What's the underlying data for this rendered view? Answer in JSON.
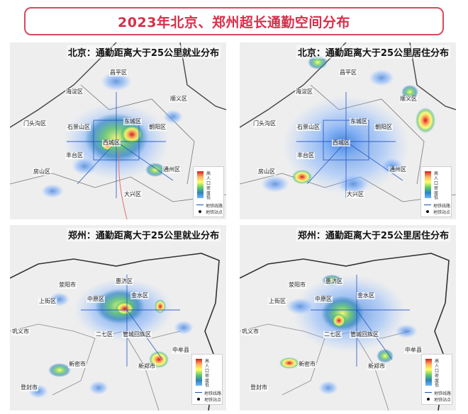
{
  "title": "2023年北京、郑州超长通勤空间分布",
  "colors": {
    "title_border": "#d94a5e",
    "title_text": "#d92e4a",
    "heat_low": "#2b83ba",
    "heat_high": "#d7191c",
    "subway_line": "#1c4fbf"
  },
  "legend": {
    "high": "高",
    "caption": "人口密度",
    "low": "低",
    "subway_line": "地铁线路",
    "subway_station": "地铁站点"
  },
  "panels": {
    "bj_work": {
      "title": "北京：通勤距离大于25公里就业分布",
      "places": {
        "changping": "昌平区",
        "haidian": "海淀区",
        "shunyi": "顺义区",
        "mentougou": "门头沟区",
        "shijingshan": "石景山区",
        "dongcheng": "东城区",
        "chaoyang": "朝阳区",
        "xicheng": "西城区",
        "fengtai": "丰台区",
        "fangshan": "房山区",
        "tongzhou": "通州区",
        "daxing": "大兴区"
      }
    },
    "bj_live": {
      "title": "北京：通勤距离大于25公里居住分布",
      "places": {
        "changping": "昌平区",
        "haidian": "海淀区",
        "shunyi": "顺义区",
        "mentougou": "门头沟区",
        "shijingshan": "石景山区",
        "dongcheng": "东城区",
        "chaoyang": "朝阳区",
        "xicheng": "西城区",
        "fengtai": "丰台区",
        "fangshan": "房山区",
        "tongzhou": "通州区",
        "daxing": "大兴区"
      }
    },
    "zz_work": {
      "title": "郑州：通勤距离大于25公里就业分布",
      "places": {
        "xingyang": "荥阳市",
        "huiji": "惠济区",
        "jinshui": "金水区",
        "shangjie": "上街区",
        "zhongyuan": "中原区",
        "gongyi": "巩义市",
        "erqi": "二七区",
        "guancheng": "管城回族区",
        "zhongmou": "中牟县",
        "xinmi": "新密市",
        "xinzheng": "新郑市",
        "dengfeng": "登封市"
      }
    },
    "zz_live": {
      "title": "郑州：通勤距离大于25公里居住分布",
      "places": {
        "xingyang": "荥阳市",
        "huiji": "惠济区",
        "jinshui": "金水区",
        "shangjie": "上街区",
        "zhongyuan": "中原区",
        "gongyi": "巩义市",
        "erqi": "二七区",
        "guancheng": "管城回族区",
        "zhongmou": "中牟县",
        "xinmi": "新密市",
        "xinzheng": "新郑市",
        "dengfeng": "登封市"
      }
    }
  }
}
